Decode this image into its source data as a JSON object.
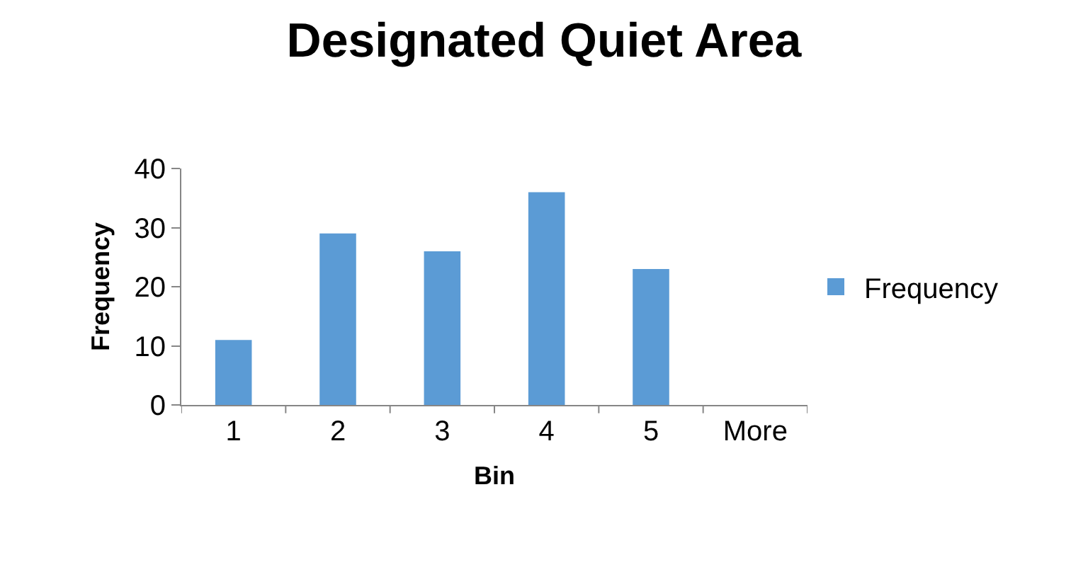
{
  "chart_data": {
    "type": "bar",
    "title": "Designated Quiet Area",
    "xlabel": "Bin",
    "ylabel": "Frequency",
    "categories": [
      "1",
      "2",
      "3",
      "4",
      "5",
      "More"
    ],
    "series": [
      {
        "name": "Frequency",
        "color": "#5b9bd5",
        "values": [
          11,
          29,
          26,
          36,
          23,
          0
        ]
      }
    ],
    "ylim": [
      0,
      40
    ],
    "yticks": [
      0,
      10,
      20,
      30,
      40
    ],
    "grid": false,
    "legend": "right"
  }
}
